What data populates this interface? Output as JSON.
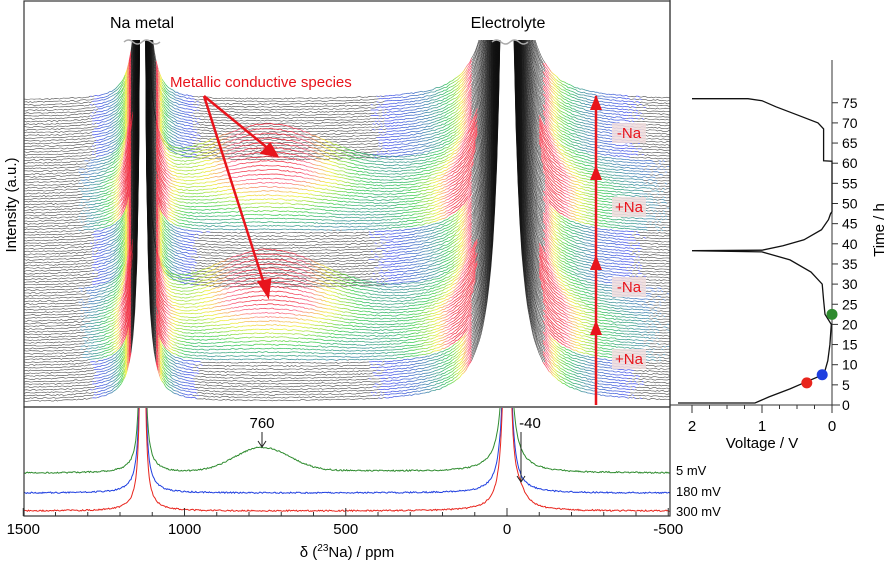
{
  "chart_data": [
    {
      "type": "line",
      "panel": "stacked in-situ spectra",
      "ylabel": "Intensity (a.u.)",
      "x_direction": "reversed",
      "xlim": [
        1500,
        -500
      ],
      "y_time_range_h": [
        0,
        76
      ],
      "peaks": [
        {
          "label": "Na metal",
          "position_ppm": 1130
        },
        {
          "label": "Electrolyte",
          "position_ppm": 0
        }
      ],
      "feature_ppm": 760,
      "annotations": {
        "metallic": "Metallic conductive species",
        "process": [
          "+Na",
          "-Na",
          "+Na",
          "-Na"
        ],
        "process_bounds_h": [
          0,
          22,
          38,
          60,
          76
        ]
      }
    },
    {
      "type": "line",
      "panel": "selected spectra",
      "xlabel_pre": "δ (",
      "xlabel_sup": "23",
      "xlabel_post": "Na) / ppm",
      "xlim": [
        1500,
        -500
      ],
      "xticks": [
        1500,
        1000,
        500,
        0,
        -500
      ],
      "series": [
        {
          "name": "5 mV",
          "color": "#2e8b2e",
          "hump_ppm": 760
        },
        {
          "name": "180 mV",
          "color": "#1f3fe0"
        },
        {
          "name": "300 mV",
          "color": "#e8241c",
          "shoulder_ppm": -40
        }
      ],
      "annotations": [
        "760",
        "-40"
      ]
    },
    {
      "type": "line",
      "panel": "electrochemistry",
      "xlabel": "Voltage / V",
      "ylabel": "Time / h",
      "xlim": [
        2.2,
        0
      ],
      "ylim": [
        0,
        78
      ],
      "xticks": [
        "2",
        "1",
        "0"
      ],
      "yticks": [
        "0",
        "5",
        "10",
        "15",
        "20",
        "25",
        "30",
        "35",
        "40",
        "45",
        "50",
        "55",
        "60",
        "65",
        "70",
        "75"
      ],
      "curve": [
        [
          2.2,
          0.5
        ],
        [
          1.1,
          0.5
        ],
        [
          0.9,
          2
        ],
        [
          0.6,
          4
        ],
        [
          0.4,
          5.5
        ],
        [
          0.2,
          7
        ],
        [
          0.1,
          8.5
        ],
        [
          0.06,
          11
        ],
        [
          0.03,
          15
        ],
        [
          0.01,
          20
        ],
        [
          0.1,
          22.5
        ],
        [
          0.12,
          26
        ],
        [
          0.14,
          30
        ],
        [
          0.3,
          33
        ],
        [
          0.6,
          36
        ],
        [
          1.0,
          38
        ],
        [
          2.0,
          38.3
        ],
        [
          1.0,
          38.4
        ],
        [
          0.7,
          39.5
        ],
        [
          0.4,
          41
        ],
        [
          0.15,
          43.5
        ],
        [
          0.05,
          46
        ],
        [
          0.02,
          47.5
        ],
        [
          0.0,
          48
        ],
        [
          0.0,
          60.5
        ],
        [
          0.12,
          60.6
        ],
        [
          0.12,
          68.5
        ],
        [
          0.2,
          70
        ],
        [
          0.5,
          72
        ],
        [
          0.8,
          74
        ],
        [
          1.0,
          75.5
        ],
        [
          1.2,
          76
        ],
        [
          2.0,
          76
        ]
      ],
      "markers": [
        {
          "voltage": 0.36,
          "time": 5.5,
          "color": "#e8241c"
        },
        {
          "voltage": 0.14,
          "time": 7.5,
          "color": "#1f3fe0"
        },
        {
          "voltage": 0.0,
          "time": 22.5,
          "color": "#2e8b2e"
        }
      ]
    }
  ]
}
